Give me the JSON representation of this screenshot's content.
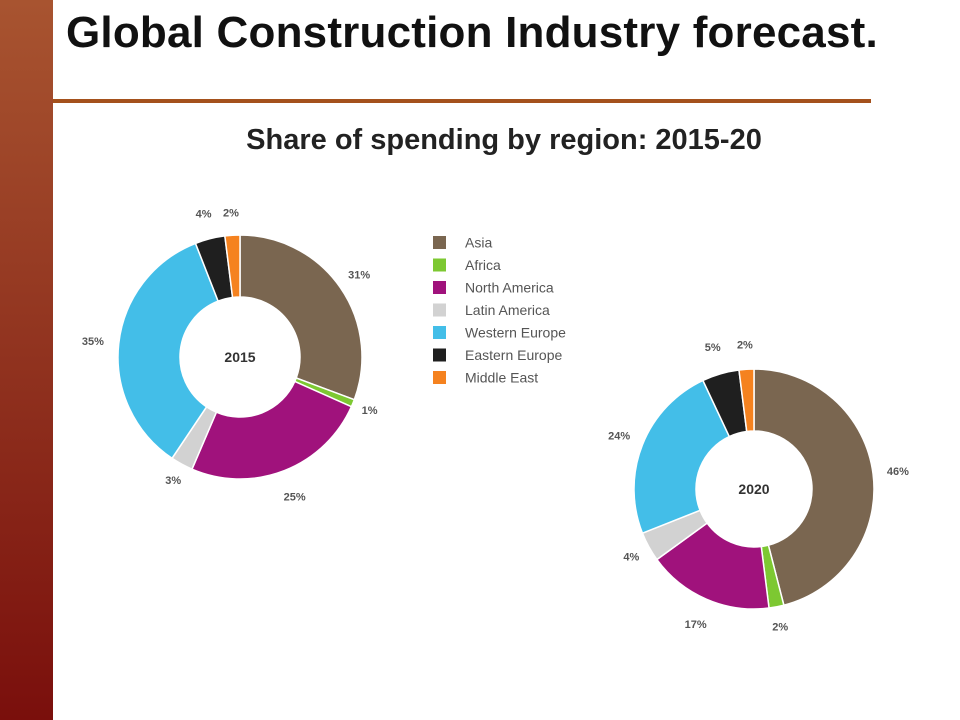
{
  "slide": {
    "title": "Global Construction Industry forecast.",
    "subtitle": "Share of spending by region: 2015-20"
  },
  "colors": {
    "accent_bar": "#a4511c",
    "Asia": "#7a6650",
    "Africa": "#7dc832",
    "North America": "#a0127c",
    "Latin America": "#d2d2d2",
    "Western Europe": "#43bee8",
    "Eastern Europe": "#1f1f1f",
    "Middle East": "#f5821f"
  },
  "chart_data": [
    {
      "type": "pie",
      "center_label": "2015",
      "categories": [
        "Asia",
        "Africa",
        "North America",
        "Latin America",
        "Western Europe",
        "Eastern Europe",
        "Middle East"
      ],
      "values": [
        31,
        1,
        25,
        3,
        35,
        4,
        2
      ],
      "labels": [
        "31%",
        "1%",
        "25%",
        "3%",
        "35%",
        "4%",
        "2%"
      ],
      "legend": [
        "Asia",
        "Africa",
        "North America",
        "Latin America",
        "Western Europe",
        "Eastern Europe",
        "Middle East"
      ],
      "legend_position": "right"
    },
    {
      "type": "pie",
      "center_label": "2020",
      "categories": [
        "Asia",
        "Africa",
        "North America",
        "Latin America",
        "Western Europe",
        "Eastern Europe",
        "Middle East"
      ],
      "values": [
        46,
        2,
        17,
        4,
        24,
        5,
        2
      ],
      "labels": [
        "46%",
        "2%",
        "17%",
        "4%",
        "24%",
        "5%",
        "2%"
      ]
    }
  ]
}
